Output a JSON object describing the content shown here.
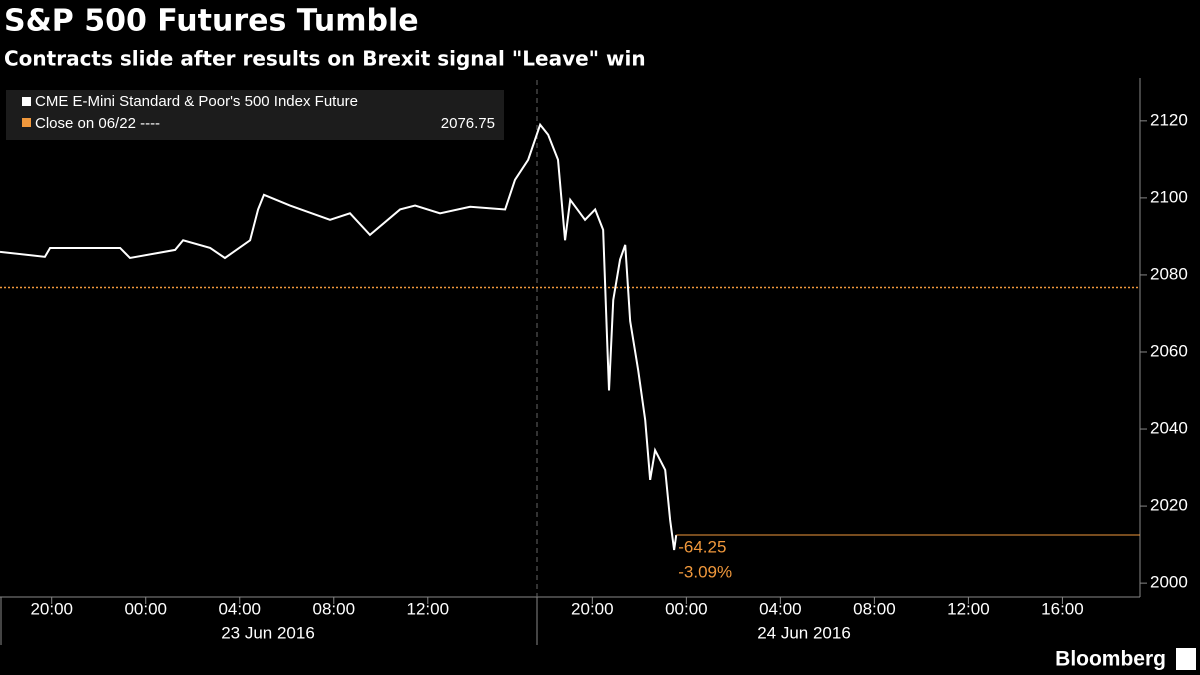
{
  "chart_data": {
    "type": "line",
    "title": "S&P 500 Futures Tumble",
    "subtitle": "Contracts slide after results on Brexit signal \"Leave\" win",
    "x": [
      -2.2,
      -0.29,
      -0.07,
      2.91,
      3.33,
      5.25,
      5.59,
      6.74,
      7.37,
      8.44,
      8.78,
      9.03,
      10.14,
      11.84,
      12.69,
      13.54,
      14.82,
      15.46,
      16.52,
      17.8,
      19.29,
      19.71,
      20.27,
      20.78,
      21.12,
      21.54,
      21.84,
      22.06,
      22.69,
      23.12,
      23.46,
      23.63,
      23.71,
      23.89,
      24.18,
      24.4,
      24.61,
      24.95,
      25.25,
      25.46,
      25.67,
      26.1,
      26.31,
      26.48,
      26.57
    ],
    "series": [
      {
        "name": "CME E-Mini Standard & Poor's 500 Index Future",
        "color": "#ffffff",
        "values": [
          2086,
          2084.7,
          2087,
          2087,
          2084.4,
          2086.5,
          2089,
          2087,
          2084.4,
          2089,
          2097,
          2100.8,
          2098,
          2094.3,
          2096,
          2090.4,
          2097,
          2098,
          2096,
          2097.7,
          2097,
          2104.7,
          2109.9,
          2119,
          2116.4,
          2109.9,
          2089,
          2099.5,
          2094.3,
          2097,
          2091.7,
          2063,
          2050,
          2073.5,
          2084,
          2087.8,
          2068,
          2055.3,
          2042.3,
          2026.8,
          2034.5,
          2029.4,
          2016.4,
          2008.6,
          2012.5
        ]
      }
    ],
    "reference_line": {
      "label": "Close on 06/22 ----",
      "value": 2076.75,
      "color": "#f0983c"
    },
    "annotations": [
      "-64.25",
      "-3.09%"
    ],
    "xlim": [
      -2.2,
      46.3
    ],
    "ylim": [
      1996.4,
      2130.6
    ],
    "xticks": [
      {
        "value": 0,
        "label": "20:00"
      },
      {
        "value": 4,
        "label": "00:00"
      },
      {
        "value": 8,
        "label": "04:00"
      },
      {
        "value": 12,
        "label": "08:00"
      },
      {
        "value": 16,
        "label": "12:00"
      },
      {
        "value": 23,
        "label": "20:00"
      },
      {
        "value": 27,
        "label": "00:00"
      },
      {
        "value": 31,
        "label": "04:00"
      },
      {
        "value": 35,
        "label": "08:00"
      },
      {
        "value": 39,
        "label": "12:00"
      },
      {
        "value": 43,
        "label": "16:00"
      }
    ],
    "x_groups": [
      "23 Jun 2016",
      "24 Jun 2016"
    ],
    "yticks": [
      2000,
      2020,
      2040,
      2060,
      2080,
      2100,
      2120
    ],
    "source": "Bloomberg"
  }
}
